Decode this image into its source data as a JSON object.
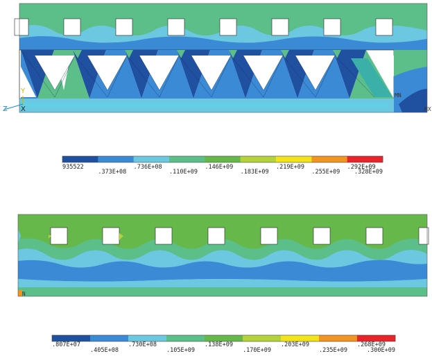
{
  "plot1": {
    "markers": {
      "mn": "MN",
      "mx": "MX",
      "axis_x": "X",
      "axis_y": "Y",
      "axis_z": "Z"
    },
    "legend": {
      "colors": [
        "#2050a0",
        "#3a8ad6",
        "#6cc8e0",
        "#5cbf8a",
        "#66b84a",
        "#b4d23a",
        "#f2e41a",
        "#f29420",
        "#e8232a"
      ],
      "labels": [
        "935522",
        ".373E+08",
        ".736E+08",
        ".110E+09",
        ".146E+09",
        ".183E+09",
        ".219E+09",
        ".255E+09",
        ".292E+09",
        ".328E+09"
      ]
    }
  },
  "plot2": {
    "markers": {
      "mn": "MN"
    },
    "legend": {
      "colors": [
        "#2050a0",
        "#3a8ad6",
        "#6cc8e0",
        "#5cbf8a",
        "#66b84a",
        "#b4d23a",
        "#f2e41a",
        "#f29420",
        "#e8232a"
      ],
      "labels": [
        ".807E+07",
        ".405E+08",
        ".730E+08",
        ".105E+09",
        ".138E+09",
        ".170E+09",
        ".203E+09",
        ".235E+09",
        ".268E+09",
        ".300E+09"
      ]
    }
  }
}
